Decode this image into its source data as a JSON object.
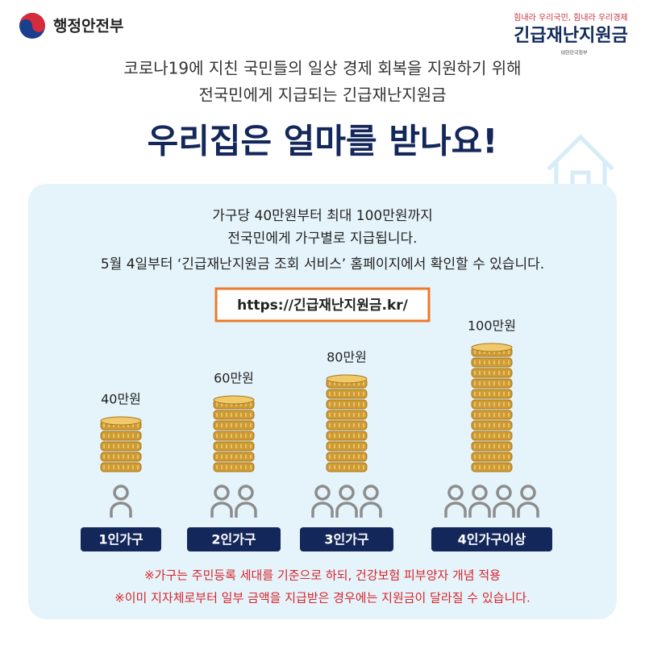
{
  "header": {
    "ministry": "행정안전부",
    "slogan": "힘내라 우리국민, 힘내라 우리경제",
    "program": "긴급재난지원금",
    "government": "대한민국정부"
  },
  "intro": [
    "코로나19에 지친 국민들의 일상 경제 회복을 지원하기 위해",
    "전국민에게 지급되는 긴급재난지원금"
  ],
  "title": "우리집은 얼마를 받나요!",
  "panel": {
    "lines": [
      "가구당 40만원부터 최대 100만원까지",
      "전국민에게 가구별로 지급됩니다.",
      "5월 4일부터 ‘긴급재난지원금 조회 서비스’ 홈페이지에서 확인할 수 있습니다."
    ],
    "url": "https://긴급재난지원금.kr/",
    "groups": [
      {
        "amount": "40만원",
        "household": "1인가구"
      },
      {
        "amount": "60만원",
        "household": "2인가구"
      },
      {
        "amount": "80만원",
        "household": "3인가구"
      },
      {
        "amount": "100만원",
        "household": "4인가구이상"
      }
    ],
    "notes": [
      "※가구는 주민등록 세대를 기준으로 하되, 건강보험 피부양자 개념 적용",
      "※이미 지자체로부터 일부 금액을 지급받은 경우에는 지원금이 달라질 수 있습니다."
    ]
  }
}
